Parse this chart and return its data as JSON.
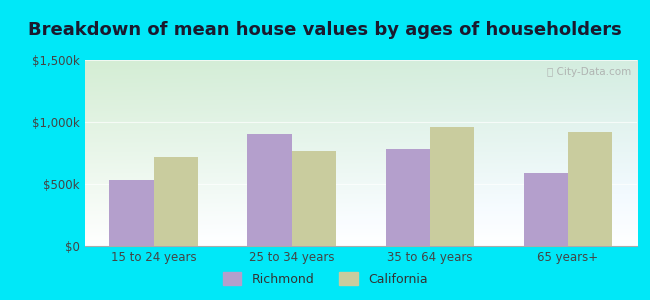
{
  "title": "Breakdown of mean house values by ages of householders",
  "categories": [
    "15 to 24 years",
    "25 to 34 years",
    "35 to 64 years",
    "65 years+"
  ],
  "richmond_values": [
    530000,
    900000,
    780000,
    590000
  ],
  "california_values": [
    720000,
    770000,
    960000,
    920000
  ],
  "richmond_color": "#b49fcc",
  "california_color": "#c9cc9e",
  "ylim": [
    0,
    1500000
  ],
  "yticks": [
    0,
    500000,
    1000000,
    1500000
  ],
  "ytick_labels": [
    "$0",
    "$500k",
    "$1,000k",
    "$1,500k"
  ],
  "legend_richmond": "Richmond",
  "legend_california": "California",
  "background_outer": "#00e8f8",
  "title_fontsize": 13,
  "bar_width": 0.32
}
